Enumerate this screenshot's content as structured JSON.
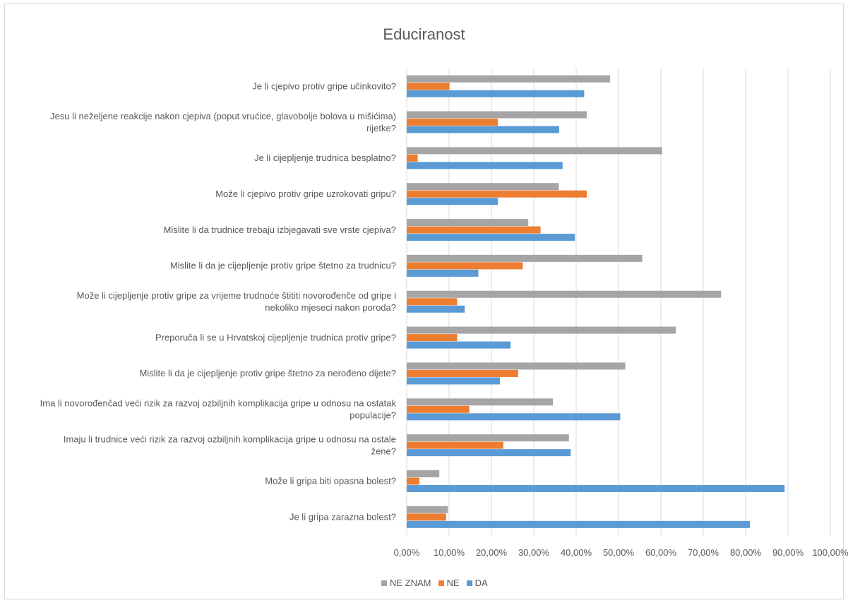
{
  "chart_data": {
    "type": "bar",
    "orientation": "horizontal",
    "title": "Educiranost",
    "xlim": [
      0,
      100
    ],
    "x_ticks": [
      "0,00%",
      "10,00%",
      "20,00%",
      "30,00%",
      "40,00%",
      "50,00%",
      "60,00%",
      "70,00%",
      "80,00%",
      "90,00%",
      "100,00%"
    ],
    "grid": true,
    "legend_position": "bottom",
    "categories": [
      "Je li cjepivo protiv gripe učinkovito?",
      "Jesu li neželjene reakcije nakon cjepiva (poput vrućice, glavobolje bolova u mišićima) rijetke?",
      "Je li cijepljenje trudnica besplatno?",
      "Može li cjepivo protiv gripe uzrokovati gripu?",
      "Mislite li da trudnice trebaju izbjegavati sve vrste cjepiva?",
      "Mislite li da je cijepljenje protiv gripe štetno za trudnicu?",
      "Može li cijepljenje protiv gripe za vrijeme trudnoće štititi novorođenče od gripe i nekoliko mjeseci nakon poroda?",
      "Preporuča li se u Hrvatskoj cijepljenje trudnica protiv gripe?",
      "Mislite li da je cijepljenje protiv gripe štetno za nerođeno dijete?",
      "Ima li novorođenčad veći rizik za razvoj ozbiljnih komplikacija gripe u odnosu na ostatak populacije?",
      "Imaju li trudnice veći rizik za razvoj ozbiljnih komplikacija gripe u odnosu na ostale žene?",
      "Može li gripa biti opasna bolest?",
      "Je li gripa zarazna bolest?"
    ],
    "series": [
      {
        "name": "NE ZNAM",
        "color": "#a5a5a5",
        "values": [
          48.0,
          42.5,
          60.3,
          35.9,
          28.7,
          55.6,
          74.2,
          63.5,
          51.6,
          34.5,
          38.3,
          7.7,
          9.7
        ]
      },
      {
        "name": "NE",
        "color": "#ed7d31",
        "values": [
          10.1,
          21.5,
          2.6,
          42.5,
          31.6,
          27.4,
          11.9,
          11.9,
          26.3,
          14.8,
          22.8,
          3.0,
          9.3
        ]
      },
      {
        "name": "DA",
        "color": "#5b9bd5",
        "values": [
          41.9,
          36.0,
          36.8,
          21.5,
          39.7,
          16.9,
          13.7,
          24.5,
          22.0,
          50.4,
          38.7,
          89.2,
          81.0
        ]
      }
    ]
  }
}
